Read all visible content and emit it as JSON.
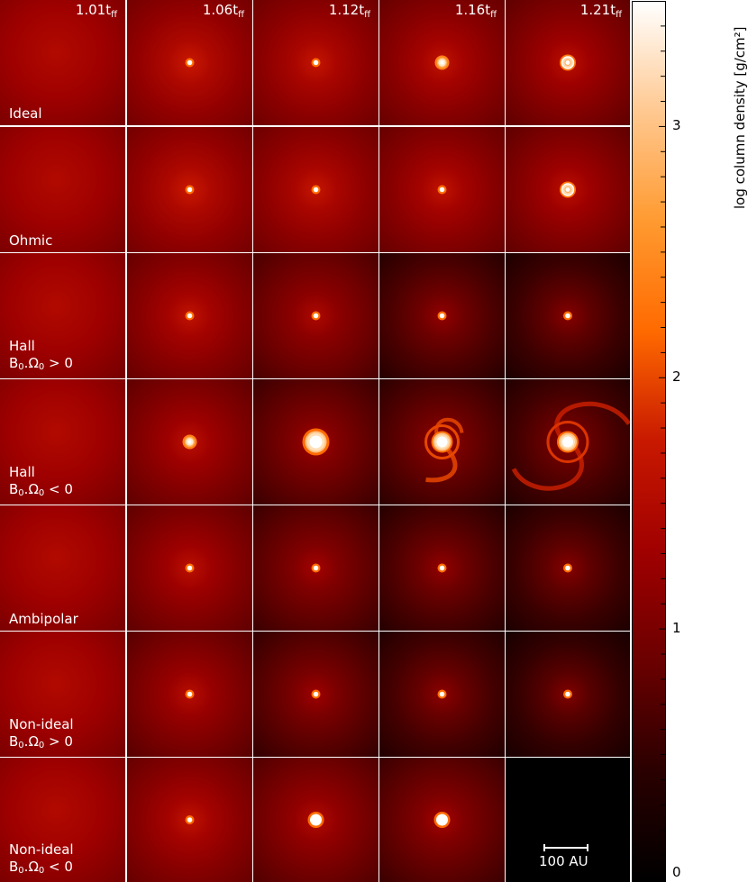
{
  "chart_data": {
    "type": "heatmap",
    "columns": [
      "1.01",
      "1.06",
      "1.12",
      "1.16",
      "1.21"
    ],
    "time_unit": "t",
    "time_unit_sub": "ff",
    "rows": [
      {
        "lines": [
          "Ideal"
        ]
      },
      {
        "lines": [
          "Ohmic"
        ]
      },
      {
        "lines": [
          "Hall",
          "B0.Ω0 > 0"
        ]
      },
      {
        "lines": [
          "Hall",
          "B0.Ω0 < 0"
        ]
      },
      {
        "lines": [
          "Ambipolar"
        ]
      },
      {
        "lines": [
          "Non-ideal",
          "B0.Ω0 > 0"
        ]
      },
      {
        "lines": [
          "Non-ideal",
          "B0.Ω0 < 0"
        ]
      }
    ],
    "disc_types": [
      [
        "diffuse",
        "point",
        "point",
        "small_disc",
        "disc"
      ],
      [
        "diffuse",
        "point",
        "point",
        "point",
        "disc"
      ],
      [
        "diffuse",
        "point",
        "point",
        "point",
        "point"
      ],
      [
        "diffuse",
        "small_disc",
        "large_disc",
        "spiral_disc",
        "spiral_disc"
      ],
      [
        "diffuse",
        "point",
        "point",
        "point",
        "point"
      ],
      [
        "diffuse",
        "point",
        "point",
        "point",
        "point"
      ],
      [
        "diffuse",
        "point",
        "compact_disc",
        "compact_disc",
        "none"
      ]
    ],
    "background_level": [
      [
        1.45,
        1.4,
        1.35,
        1.3,
        1.25
      ],
      [
        1.45,
        1.4,
        1.35,
        1.3,
        1.25
      ],
      [
        1.45,
        1.3,
        1.1,
        0.85,
        0.75
      ],
      [
        1.45,
        1.25,
        1.0,
        0.9,
        0.8
      ],
      [
        1.45,
        1.25,
        1.0,
        0.85,
        0.75
      ],
      [
        1.45,
        1.2,
        0.95,
        0.8,
        0.7
      ],
      [
        1.45,
        1.3,
        1.15,
        1.0,
        0.0
      ]
    ],
    "colorbar": {
      "label": "log column density [g/cm²]",
      "range": [
        0,
        3.5
      ],
      "ticks": [
        0,
        1,
        2,
        3
      ]
    },
    "scale_bar": "100 AU",
    "colors": {
      "stops": [
        "#000000",
        "#2a0000",
        "#6b0000",
        "#a00000",
        "#c81800",
        "#ff6a00",
        "#ff9a30",
        "#ffc890",
        "#ffffff"
      ]
    }
  }
}
